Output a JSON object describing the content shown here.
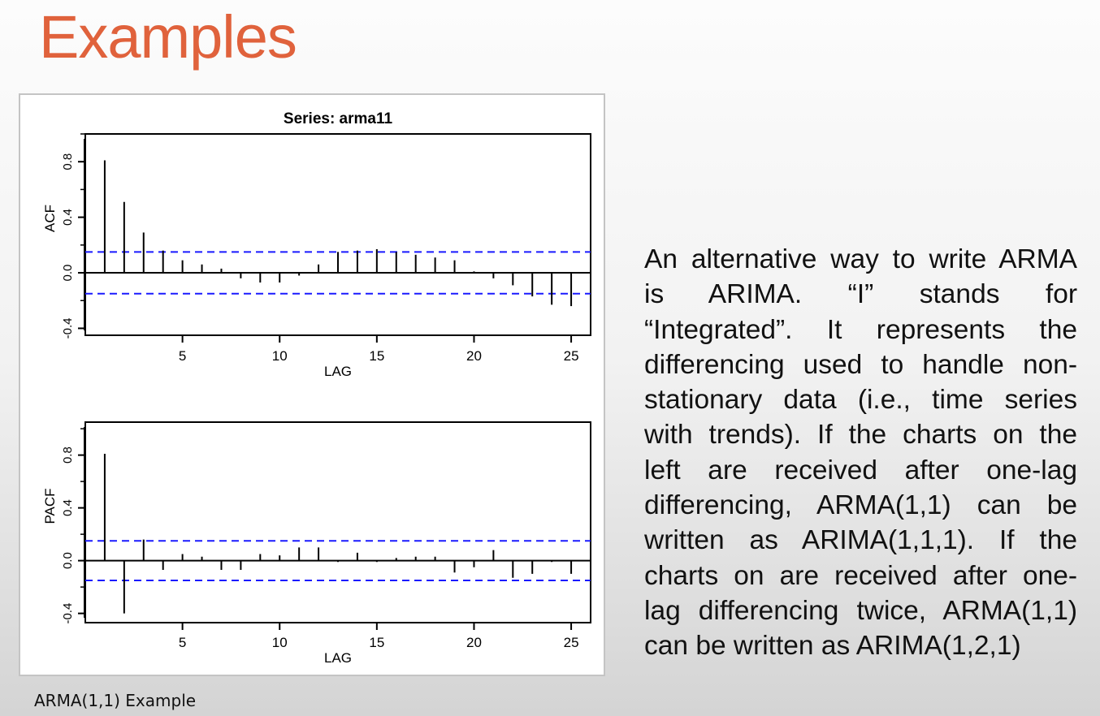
{
  "slide": {
    "title": "Examples",
    "caption": "ARMA(1,1) Example",
    "body_lines": [
      "An alternative way to write ARMA",
      "is ARIMA. “I” stands for",
      "“Integrated”. It represents the",
      "differencing used to handle non-",
      "stationary data (i.e., time series",
      "with trends). If the charts on the",
      "left are received after one-lag",
      "differencing, ARMA(1,1) can be",
      "written as ARIMA(1,1,1). If the",
      "charts on are received after one-",
      "lag differencing twice, ARMA(1,1)",
      "can be written as ARIMA(1,2,1)"
    ]
  },
  "colors": {
    "title": "#e0623c",
    "confidence_band": "#1a1aff",
    "spike": "#000000"
  },
  "chart_data": [
    {
      "type": "bar",
      "title": "Series: arma11",
      "xlabel": "LAG",
      "ylabel": "ACF",
      "xticks": [
        5,
        10,
        15,
        20,
        25
      ],
      "yticks": [
        -0.4,
        0.0,
        0.4,
        0.8
      ],
      "ytick_labels": [
        "-0.4",
        "0.0",
        "0.4",
        "0.8"
      ],
      "xlim": [
        0,
        26
      ],
      "ylim": [
        -0.45,
        1.0
      ],
      "confidence_bound": 0.15,
      "x": [
        1,
        2,
        3,
        4,
        5,
        6,
        7,
        8,
        9,
        10,
        11,
        12,
        13,
        14,
        15,
        16,
        17,
        18,
        19,
        20,
        21,
        22,
        23,
        24,
        25
      ],
      "values": [
        0.81,
        0.51,
        0.29,
        0.16,
        0.09,
        0.06,
        0.03,
        -0.04,
        -0.07,
        -0.07,
        -0.02,
        0.06,
        0.15,
        0.16,
        0.17,
        0.15,
        0.13,
        0.11,
        0.09,
        0.01,
        -0.04,
        -0.09,
        -0.17,
        -0.23,
        -0.24
      ]
    },
    {
      "type": "bar",
      "title": "",
      "xlabel": "LAG",
      "ylabel": "PACF",
      "xticks": [
        5,
        10,
        15,
        20,
        25
      ],
      "yticks": [
        -0.4,
        0.0,
        0.4,
        0.8
      ],
      "ytick_labels": [
        "-0.4",
        "0.0",
        "0.4",
        "0.8"
      ],
      "xlim": [
        0,
        26
      ],
      "ylim": [
        -0.47,
        1.05
      ],
      "confidence_bound": 0.15,
      "x": [
        1,
        2,
        3,
        4,
        5,
        6,
        7,
        8,
        9,
        10,
        11,
        12,
        13,
        14,
        15,
        16,
        17,
        18,
        19,
        20,
        21,
        22,
        23,
        24,
        25
      ],
      "values": [
        0.81,
        -0.4,
        0.16,
        -0.07,
        0.05,
        0.03,
        -0.07,
        -0.07,
        0.05,
        0.04,
        0.1,
        0.1,
        -0.01,
        0.06,
        -0.01,
        0.02,
        0.03,
        0.03,
        -0.09,
        -0.05,
        0.08,
        -0.13,
        -0.1,
        -0.01,
        -0.1
      ]
    }
  ]
}
